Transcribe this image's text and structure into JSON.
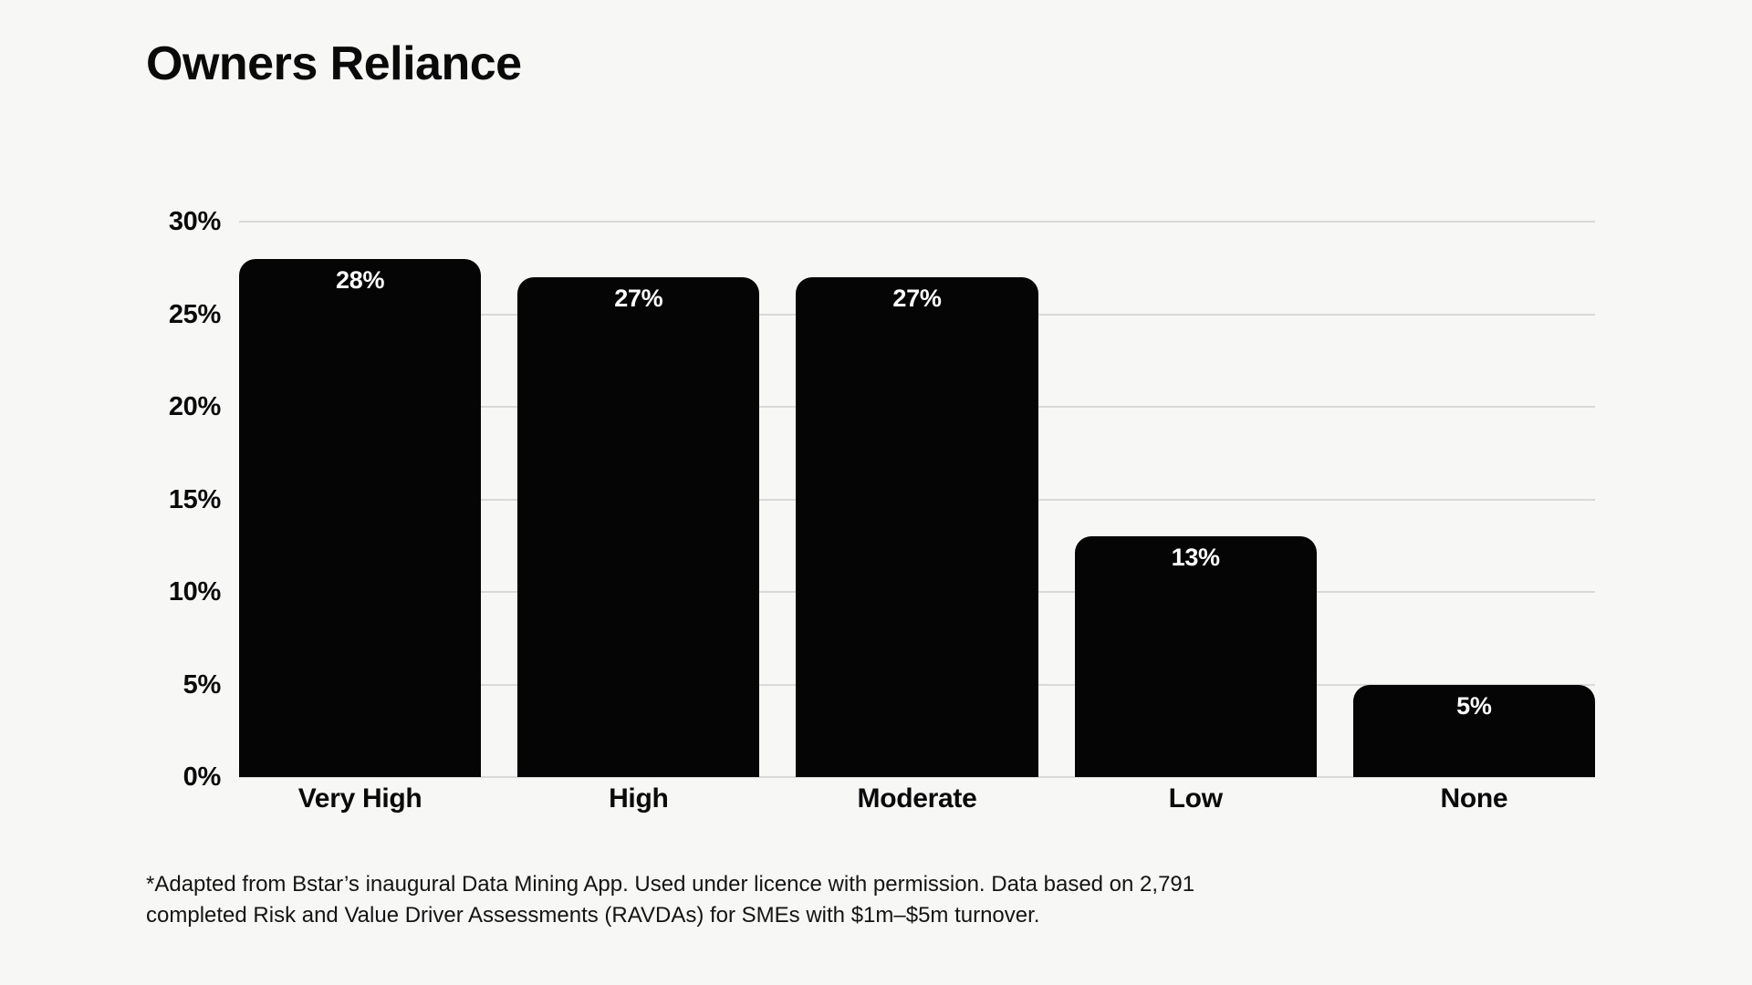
{
  "page": {
    "background": "#f7f7f5"
  },
  "chart_data": {
    "type": "bar",
    "title": "Owners Reliance",
    "categories": [
      "Very High",
      "High",
      "Moderate",
      "Low",
      "None"
    ],
    "values": [
      28,
      27,
      27,
      13,
      5
    ],
    "bar_labels": [
      "28%",
      "27%",
      "27%",
      "13%",
      "5%"
    ],
    "y_ticks": [
      30,
      25,
      20,
      15,
      10,
      5,
      0
    ],
    "y_tick_labels": [
      "30%",
      "25%",
      "20%",
      "15%",
      "10%",
      "5%",
      "0%"
    ],
    "ylim": [
      0,
      30
    ],
    "xlabel": "",
    "ylabel": "",
    "grid": "horizontal-only",
    "legend": "none",
    "colors": {
      "bar": "#050505",
      "bar_label": "#ffffff",
      "gridline": "#d9d9d9",
      "text": "#0a0a0a",
      "background": "#f7f7f5"
    },
    "footnote_line1": "*Adapted from Bstar’s inaugural Data Mining App. Used under licence with permission. Data based on 2,791",
    "footnote_line2": "completed Risk and Value Driver Assessments (RAVDAs) for SMEs with $1m–$5m turnover."
  }
}
